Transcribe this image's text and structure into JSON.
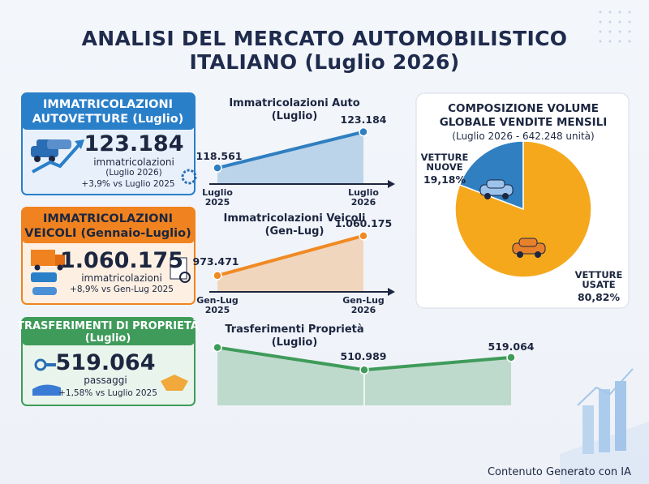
{
  "title": [
    "ANALISI DEL MERCATO AUTOMOBILISTICO",
    "ITALIANO (Luglio 2026)"
  ],
  "cards": [
    {
      "title": [
        "IMMATRICOLAZIONI",
        "AUTOVETTURE (Luglio)"
      ],
      "value": "123.184",
      "unit": "immatricolazioni",
      "note": "(Luglio 2026)",
      "change": "+3,9% vs Luglio 2025"
    },
    {
      "title": [
        "IMMATRICOLAZIONI",
        "VEICOLI (Gennaio-Luglio)"
      ],
      "value": "1.060.175",
      "unit": "immatricolazioni",
      "change": "+8,9% vs Gen-Lug 2025"
    },
    {
      "title": [
        "TRASFERIMENTI DI PROPRIETÀ",
        "(Luglio)"
      ],
      "value": "519.064",
      "unit": "passaggi",
      "change": "+1,58% vs Luglio 2025"
    }
  ],
  "chart_data": [
    {
      "type": "area",
      "title": "Immatricolazioni Auto (Luglio)",
      "categories": [
        "Luglio 2025",
        "Luglio 2026"
      ],
      "values": [
        118561,
        123184
      ],
      "value_labels": [
        "118.561",
        "123.184"
      ],
      "color": "#2f7fc1",
      "ylim": [
        116500,
        124500
      ],
      "arrow_axis": true
    },
    {
      "type": "area",
      "title": "Immatricolazioni Veicoli (Gen-Lug)",
      "categories": [
        "Gen-Lug 2025",
        "Gen-Lug 2026"
      ],
      "values": [
        973471,
        1060175
      ],
      "value_labels": [
        "973.471",
        "1.060.175"
      ],
      "color": "#f08a24",
      "ylim": [
        938000,
        1074000
      ],
      "arrow_axis": true
    },
    {
      "type": "area",
      "title": "Trasferimenti Proprietà (Luglio)",
      "categories": [
        null,
        null,
        null
      ],
      "values": [
        525500,
        510989,
        519064
      ],
      "value_labels": [
        null,
        "510.989",
        "519.064"
      ],
      "color": "#3f9b5a",
      "ylim": [
        488000,
        530000
      ],
      "arrow_axis": false
    },
    {
      "type": "pie",
      "title": [
        "COMPOSIZIONE VOLUME",
        "GLOBALE VENDITE MENSILI"
      ],
      "subtitle": "(Luglio 2026 - 642.248 unità)",
      "categories": [
        "VETTURE NUOVE",
        "VETTURE USATE"
      ],
      "values": [
        19.18,
        80.82
      ],
      "value_labels": [
        "19,18%",
        "80,82%"
      ],
      "colors": [
        "#2f7fc1",
        "#f5a81c"
      ]
    }
  ],
  "footer": "Contenuto Generato con IA"
}
